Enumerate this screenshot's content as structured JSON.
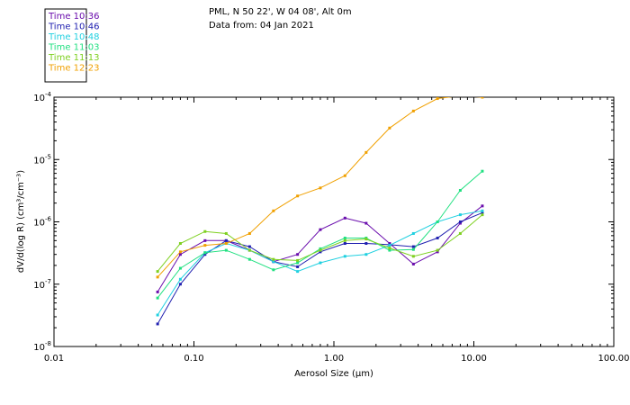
{
  "header": {
    "line1": "PML, N 50 22', W 04 08', Alt 0m",
    "line2": "Data from: 04 Jan 2021"
  },
  "chart_data": {
    "type": "line",
    "xscale": "log",
    "yscale": "log",
    "xlim": [
      0.01,
      100
    ],
    "ylim": [
      1e-08,
      0.0001
    ],
    "xlabel": "Aerosol Size (μm)",
    "ylabel": "dV/d(log R) (cm³/cm⁻³)",
    "xticks": [
      {
        "value": 0.01,
        "label": "0.01"
      },
      {
        "value": 0.1,
        "label": "0.10"
      },
      {
        "value": 1,
        "label": "1.00"
      },
      {
        "value": 10,
        "label": "10.00"
      },
      {
        "value": 100,
        "label": "100.00"
      }
    ],
    "yticks": [
      {
        "value": 1e-08,
        "base": "10",
        "exp": "-8"
      },
      {
        "value": 1e-07,
        "base": "10",
        "exp": "-7"
      },
      {
        "value": 1e-06,
        "base": "10",
        "exp": "-6"
      },
      {
        "value": 1e-05,
        "base": "10",
        "exp": "-5"
      },
      {
        "value": 0.0001,
        "base": "10",
        "exp": "-4"
      }
    ],
    "x": [
      0.055,
      0.08,
      0.12,
      0.17,
      0.25,
      0.37,
      0.55,
      0.8,
      1.2,
      1.7,
      2.5,
      3.7,
      5.5,
      8.0,
      11.5
    ],
    "series": [
      {
        "name": "Time 10:36",
        "color": "#6a0dad",
        "values": [
          7.5e-08,
          3e-07,
          5e-07,
          5e-07,
          3.5e-07,
          2.3e-07,
          3e-07,
          7.5e-07,
          1.15e-06,
          9.5e-07,
          4.5e-07,
          2.1e-07,
          3.3e-07,
          9.5e-07,
          1.8e-06
        ]
      },
      {
        "name": "Time 10:46",
        "color": "#2020b0",
        "values": [
          2.3e-08,
          1e-07,
          3e-07,
          5e-07,
          4e-07,
          2.3e-07,
          1.9e-07,
          3.3e-07,
          4.5e-07,
          4.5e-07,
          4.3e-07,
          4e-07,
          5.5e-07,
          1e-06,
          1.4e-06
        ]
      },
      {
        "name": "Time 10:48",
        "color": "#20d0e0",
        "values": [
          3.2e-08,
          1.2e-07,
          3.2e-07,
          4.5e-07,
          3.5e-07,
          2.3e-07,
          1.6e-07,
          2.2e-07,
          2.8e-07,
          3e-07,
          4.2e-07,
          6.5e-07,
          1e-06,
          1.3e-06,
          1.5e-06
        ]
      },
      {
        "name": "Time 11:03",
        "color": "#20e080",
        "values": [
          6e-08,
          1.8e-07,
          3.2e-07,
          3.5e-07,
          2.5e-07,
          1.7e-07,
          2.2e-07,
          3.7e-07,
          5.5e-07,
          5.5e-07,
          3.5e-07,
          3.6e-07,
          1e-06,
          3.2e-06,
          6.5e-06
        ]
      },
      {
        "name": "Time 11:13",
        "color": "#7ed020",
        "values": [
          1.6e-07,
          4.5e-07,
          7e-07,
          6.5e-07,
          3.5e-07,
          2.5e-07,
          2.4e-07,
          3.5e-07,
          5e-07,
          5.3e-07,
          3.8e-07,
          2.8e-07,
          3.5e-07,
          6.5e-07,
          1.3e-06
        ]
      },
      {
        "name": "Time 12:23",
        "color": "#f0a000",
        "values": [
          1.3e-07,
          3.3e-07,
          4.2e-07,
          4.5e-07,
          6.5e-07,
          1.5e-06,
          2.6e-06,
          3.5e-06,
          5.5e-06,
          1.3e-05,
          3.2e-05,
          6e-05,
          9.5e-05,
          0.000105,
          0.0001
        ]
      }
    ]
  }
}
